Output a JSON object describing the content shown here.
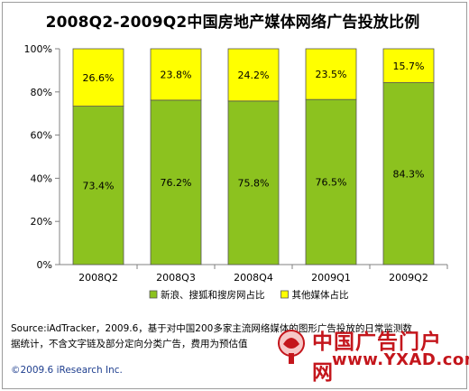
{
  "chart_data": {
    "type": "bar",
    "stacked": true,
    "title": "2008Q2-2009Q2中国房地产媒体网络广告投放比例",
    "categories": [
      "2008Q2",
      "2008Q3",
      "2008Q4",
      "2009Q1",
      "2009Q2"
    ],
    "series": [
      {
        "name": "新浪、搜狐和搜房网占比",
        "values": [
          73.4,
          76.2,
          75.8,
          76.5,
          84.3
        ],
        "labels": [
          "73.4%",
          "76.2%",
          "75.8%",
          "76.5%",
          "84.3%"
        ],
        "color": "#8cc21f"
      },
      {
        "name": "其他媒体占比",
        "values": [
          26.6,
          23.8,
          24.2,
          23.5,
          15.7
        ],
        "labels": [
          "26.6%",
          "23.8%",
          "24.2%",
          "23.5%",
          "15.7%"
        ],
        "color": "#ffff00"
      }
    ],
    "ylim": [
      0,
      100
    ],
    "yticks": [
      "0%",
      "20%",
      "40%",
      "60%",
      "80%",
      "100%"
    ],
    "grid": false,
    "legend_position": "bottom"
  },
  "footnote": {
    "line1": "Source:iAdTracker，2009.6，基于对中国200多家主流网络媒体的图形广告投放的日常监测数",
    "line2": "据统计，不含文字链及部分定向分类广告，费用为预估值"
  },
  "copyright": "©2009.6 iResearch Inc.",
  "watermark": {
    "text": "中国广告门户网",
    "url": "www.YXAD.com"
  },
  "colors": {
    "green": "#8cc21f",
    "yellow": "#ffff00",
    "watermark_red": "#c4161c"
  }
}
